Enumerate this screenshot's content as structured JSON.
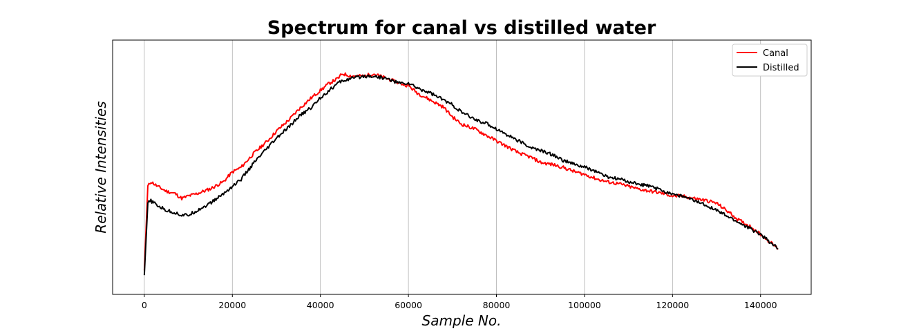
{
  "chart_data": {
    "type": "line",
    "title": "Spectrum for canal vs distilled water",
    "xlabel": "Sample No.",
    "ylabel": "Relative Intensities",
    "xlim": [
      -7200,
      151500
    ],
    "ylim": [
      -0.03,
      1.03
    ],
    "x_ticks": [
      0,
      20000,
      40000,
      60000,
      80000,
      100000,
      120000,
      140000
    ],
    "x_tick_labels": [
      "0",
      "20000",
      "40000",
      "60000",
      "80000",
      "100000",
      "120000",
      "140000"
    ],
    "y_ticks_shown": false,
    "grid": "x-only",
    "legend_position": "top-right",
    "series": [
      {
        "name": "Canal",
        "color": "#ff0000",
        "x": [
          0,
          800,
          1500,
          3000,
          5000,
          7000,
          8500,
          10000,
          12000,
          15000,
          18000,
          20000,
          22000,
          25000,
          28000,
          30000,
          33000,
          35000,
          38000,
          40000,
          42000,
          44000,
          45000,
          47000,
          50000,
          52000,
          55000,
          58000,
          60000,
          62000,
          65000,
          68000,
          70000,
          72000,
          75000,
          78000,
          80000,
          83000,
          85000,
          88000,
          90000,
          93000,
          95000,
          98000,
          100000,
          103000,
          105000,
          108000,
          110000,
          112000,
          115000,
          118000,
          120000,
          122000,
          125000,
          128000,
          130000,
          133000,
          135000,
          138000,
          140000,
          142000,
          144000
        ],
        "y": [
          0.07,
          0.42,
          0.44,
          0.42,
          0.4,
          0.39,
          0.37,
          0.38,
          0.39,
          0.41,
          0.44,
          0.48,
          0.5,
          0.56,
          0.61,
          0.65,
          0.7,
          0.74,
          0.79,
          0.82,
          0.85,
          0.87,
          0.89,
          0.88,
          0.88,
          0.89,
          0.87,
          0.85,
          0.84,
          0.81,
          0.78,
          0.75,
          0.71,
          0.68,
          0.66,
          0.63,
          0.61,
          0.58,
          0.56,
          0.54,
          0.52,
          0.51,
          0.5,
          0.48,
          0.47,
          0.45,
          0.44,
          0.43,
          0.42,
          0.41,
          0.4,
          0.39,
          0.38,
          0.38,
          0.37,
          0.36,
          0.35,
          0.31,
          0.28,
          0.25,
          0.22,
          0.19,
          0.16
        ]
      },
      {
        "name": "Distilled",
        "color": "#000000",
        "x": [
          0,
          800,
          1500,
          3000,
          5000,
          7000,
          8500,
          10000,
          12000,
          15000,
          18000,
          20000,
          22000,
          25000,
          28000,
          30000,
          33000,
          35000,
          38000,
          40000,
          42000,
          44000,
          45000,
          47000,
          50000,
          52000,
          55000,
          58000,
          60000,
          62000,
          65000,
          68000,
          70000,
          72000,
          75000,
          78000,
          80000,
          83000,
          85000,
          88000,
          90000,
          93000,
          95000,
          98000,
          100000,
          103000,
          105000,
          108000,
          110000,
          112000,
          115000,
          118000,
          120000,
          122000,
          125000,
          128000,
          130000,
          133000,
          135000,
          138000,
          140000,
          142000,
          144000
        ],
        "y": [
          0.05,
          0.35,
          0.36,
          0.34,
          0.32,
          0.31,
          0.3,
          0.3,
          0.32,
          0.35,
          0.39,
          0.42,
          0.45,
          0.52,
          0.58,
          0.62,
          0.67,
          0.71,
          0.75,
          0.79,
          0.82,
          0.85,
          0.86,
          0.87,
          0.88,
          0.88,
          0.87,
          0.85,
          0.85,
          0.83,
          0.81,
          0.78,
          0.76,
          0.73,
          0.7,
          0.68,
          0.66,
          0.63,
          0.61,
          0.58,
          0.57,
          0.55,
          0.53,
          0.51,
          0.5,
          0.48,
          0.46,
          0.45,
          0.44,
          0.43,
          0.42,
          0.4,
          0.39,
          0.38,
          0.36,
          0.34,
          0.32,
          0.29,
          0.27,
          0.24,
          0.22,
          0.19,
          0.16
        ]
      }
    ]
  }
}
